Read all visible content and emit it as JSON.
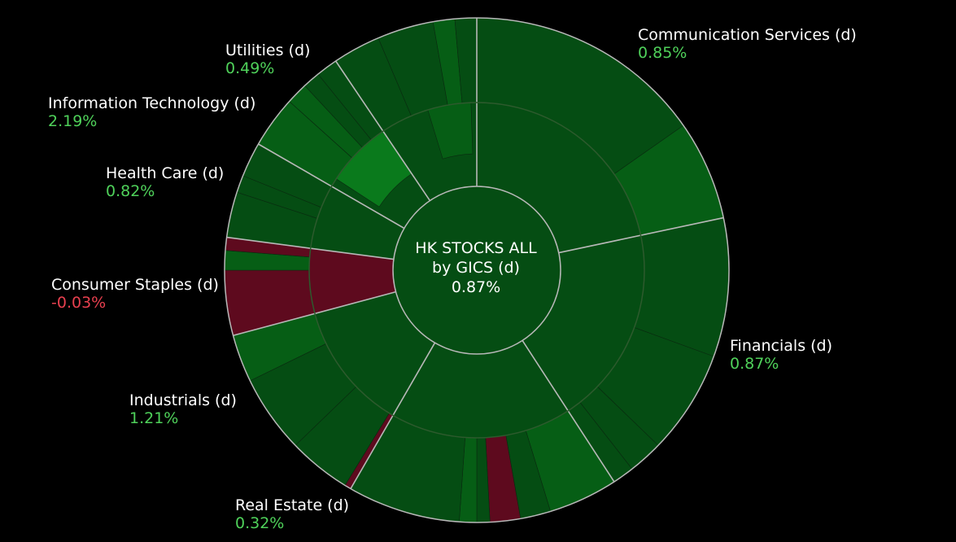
{
  "center": {
    "line1": "HK STOCKS ALL",
    "line2": "by GICS (d)",
    "value": "0.87%"
  },
  "colors": {
    "background": "#000000",
    "positive_text": "#4fd15a",
    "negative_text": "#e8404f",
    "dark_green": "#054d13",
    "mid_green": "#065e15",
    "bright_green": "#0a7a1c",
    "dark_red": "#5e0a1e",
    "separator": "#b8b8b8"
  },
  "chart_data": {
    "type": "sunburst",
    "title": "HK STOCKS ALL by GICS (d)",
    "total_change": "0.87%",
    "sectors": [
      {
        "name": "Communication Services (d)",
        "change": "0.85%",
        "sign": "pos"
      },
      {
        "name": "Financials (d)",
        "change": "0.87%",
        "sign": "pos"
      },
      {
        "name": "Real Estate (d)",
        "change": "0.32%",
        "sign": "pos"
      },
      {
        "name": "Industrials (d)",
        "change": "1.21%",
        "sign": "pos"
      },
      {
        "name": "Consumer Staples (d)",
        "change": "-0.03%",
        "sign": "neg"
      },
      {
        "name": "Health Care (d)",
        "change": "0.82%",
        "sign": "pos"
      },
      {
        "name": "Information Technology (d)",
        "change": "2.19%",
        "sign": "pos"
      },
      {
        "name": "Utilities (d)",
        "change": "0.49%",
        "sign": "pos"
      }
    ]
  }
}
